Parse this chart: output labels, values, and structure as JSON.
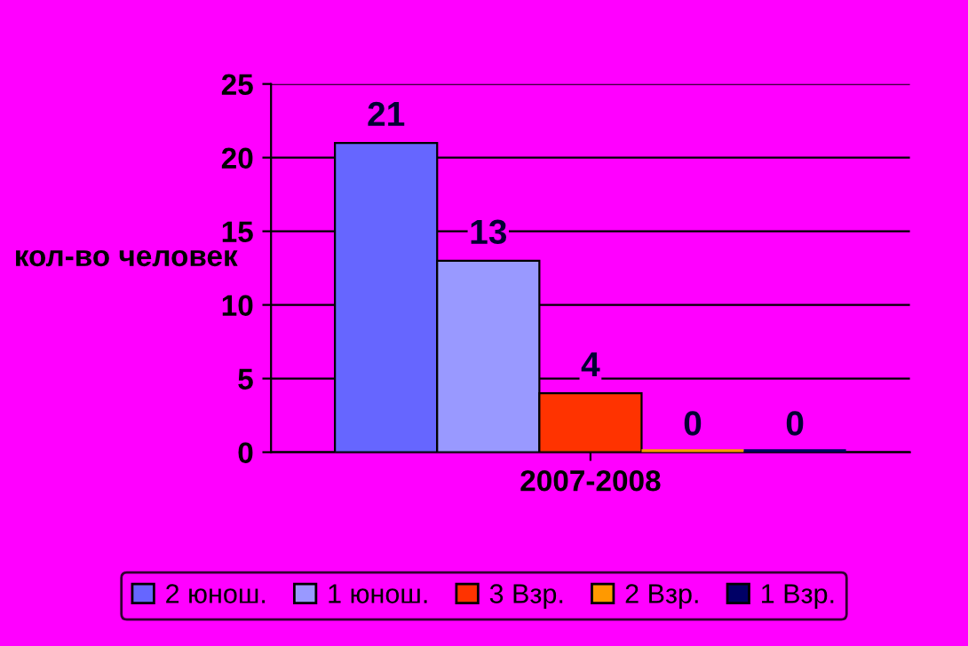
{
  "chart_data": {
    "type": "bar",
    "ylabel": "кол-во человек",
    "categories": [
      "2007-2008"
    ],
    "series": [
      {
        "name": "2 юнош.",
        "color": "#6666ff",
        "values": [
          21
        ]
      },
      {
        "name": "1 юнош.",
        "color": "#9999ff",
        "values": [
          13
        ]
      },
      {
        "name": "3 Взр.",
        "color": "#ff3300",
        "values": [
          4
        ]
      },
      {
        "name": "2 Взр.",
        "color": "#ff9900",
        "values": [
          0
        ]
      },
      {
        "name": "1 Взр.",
        "color": "#000066",
        "values": [
          0
        ]
      }
    ],
    "ylim": [
      0,
      25
    ],
    "yticks": [
      0,
      5,
      10,
      15,
      20,
      25
    ],
    "grid": "y",
    "legend": "bottom",
    "data_labels": true
  }
}
